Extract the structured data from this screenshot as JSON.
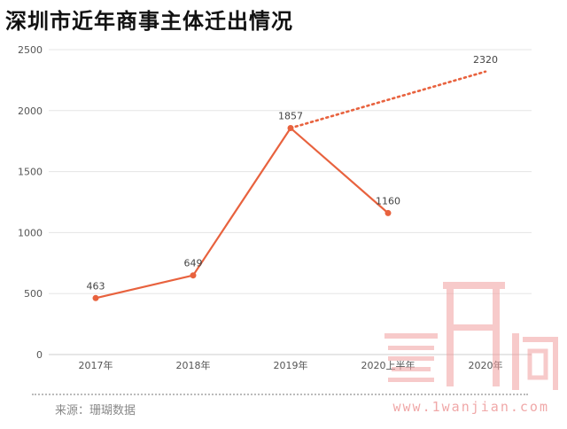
{
  "title": "深圳市近年商事主体迁出情况",
  "source": "来源：珊瑚数据",
  "watermark_text": "www.1wanjian.com",
  "chart_data": {
    "type": "line",
    "title": "深圳市近年商事主体迁出情况",
    "categories": [
      "2017年",
      "2018年",
      "2019年",
      "2020上半年",
      "2020年"
    ],
    "series": [
      {
        "values": [
          463,
          649,
          1857,
          1160,
          null
        ],
        "style": "solid"
      },
      {
        "values": [
          null,
          null,
          1857,
          null,
          2320
        ],
        "style": "dotted"
      }
    ],
    "data_labels": [
      {
        "category": "2017年",
        "value": 463,
        "text": "463"
      },
      {
        "category": "2018年",
        "value": 649,
        "text": "649"
      },
      {
        "category": "2019年",
        "value": 1857,
        "text": "1857"
      },
      {
        "category": "2020上半年",
        "value": 1160,
        "text": "1160"
      },
      {
        "category": "2020年",
        "value": 2320,
        "text": "2320"
      }
    ],
    "yticks": [
      "0",
      "500",
      "1000",
      "1500",
      "2000",
      "2500"
    ],
    "ylim": [
      0,
      2500
    ],
    "xlabel": "",
    "ylabel": "",
    "grid": "horizontal",
    "colors": {
      "line": "#e8623e",
      "grid": "#e5e5e5",
      "axis": "#cccccc",
      "tick_text": "#555555"
    }
  }
}
